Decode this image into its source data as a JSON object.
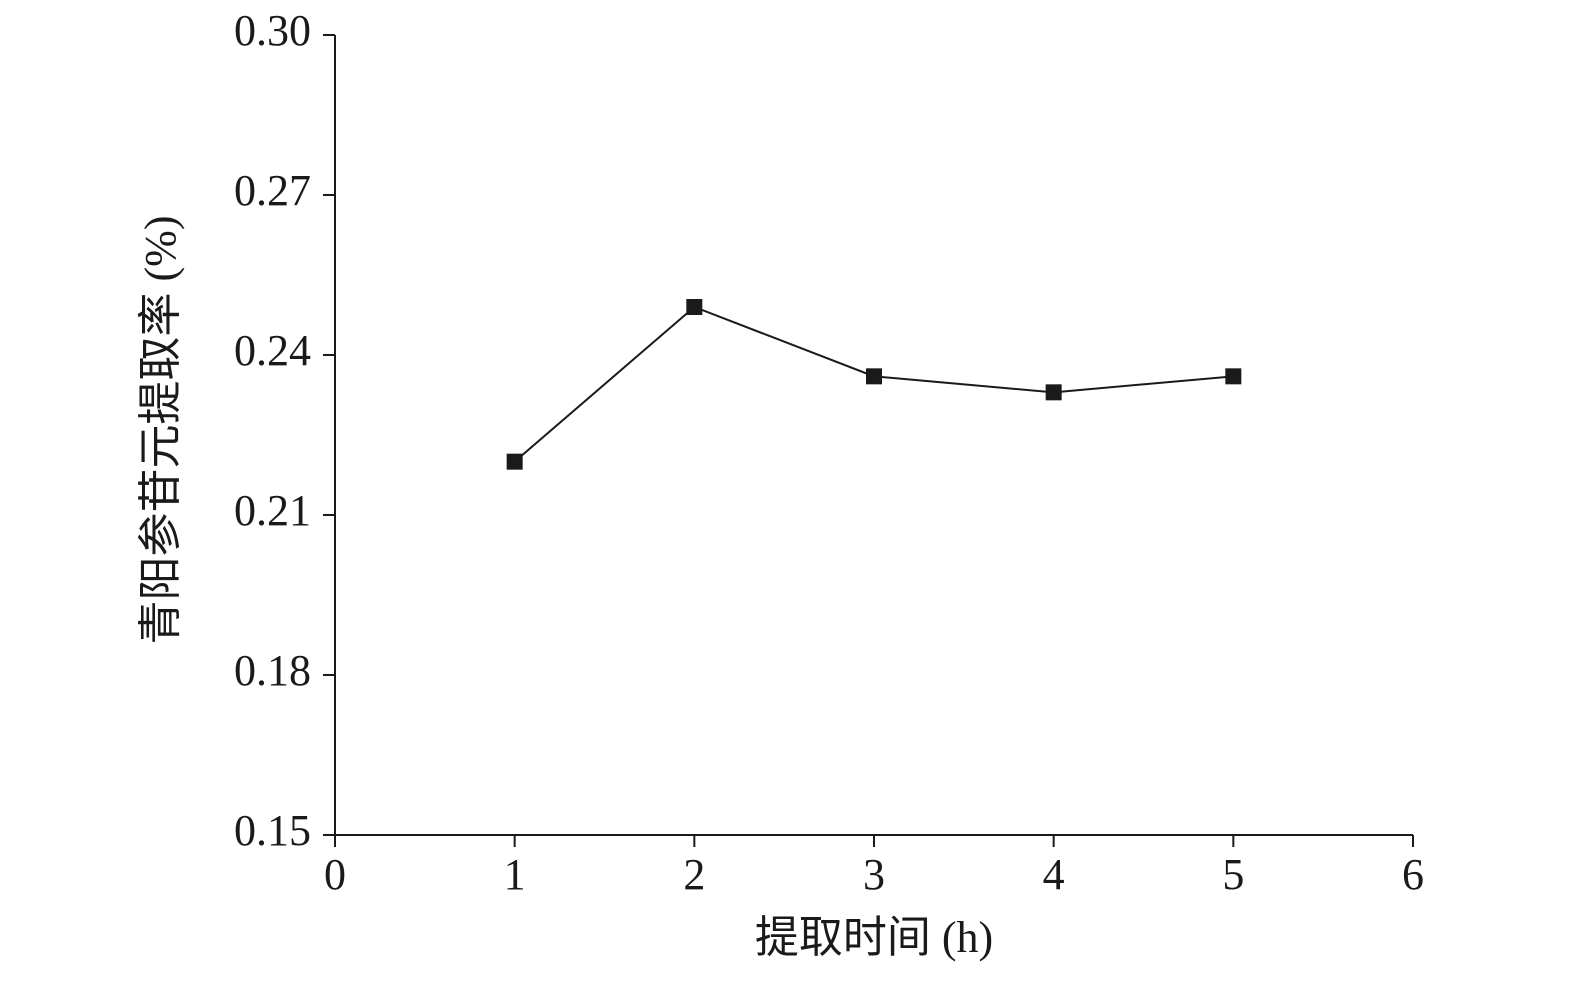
{
  "chart_data": {
    "type": "line",
    "x_label": "提取时间 (h)",
    "y_label": "青阳参苷元提取率 (%)",
    "x": [
      1,
      2,
      3,
      4,
      5
    ],
    "values": [
      0.22,
      0.249,
      0.236,
      0.233,
      0.236
    ],
    "color": "#1a1a1a",
    "xlim": [
      0,
      6
    ],
    "xticks": [
      0,
      1,
      2,
      3,
      4,
      5,
      6
    ],
    "ylim": [
      0.15,
      0.3
    ],
    "yticks": [
      0.15,
      0.18,
      0.21,
      0.24,
      0.27,
      {
        "value": 0.3,
        "label": "0.30"
      }
    ]
  }
}
